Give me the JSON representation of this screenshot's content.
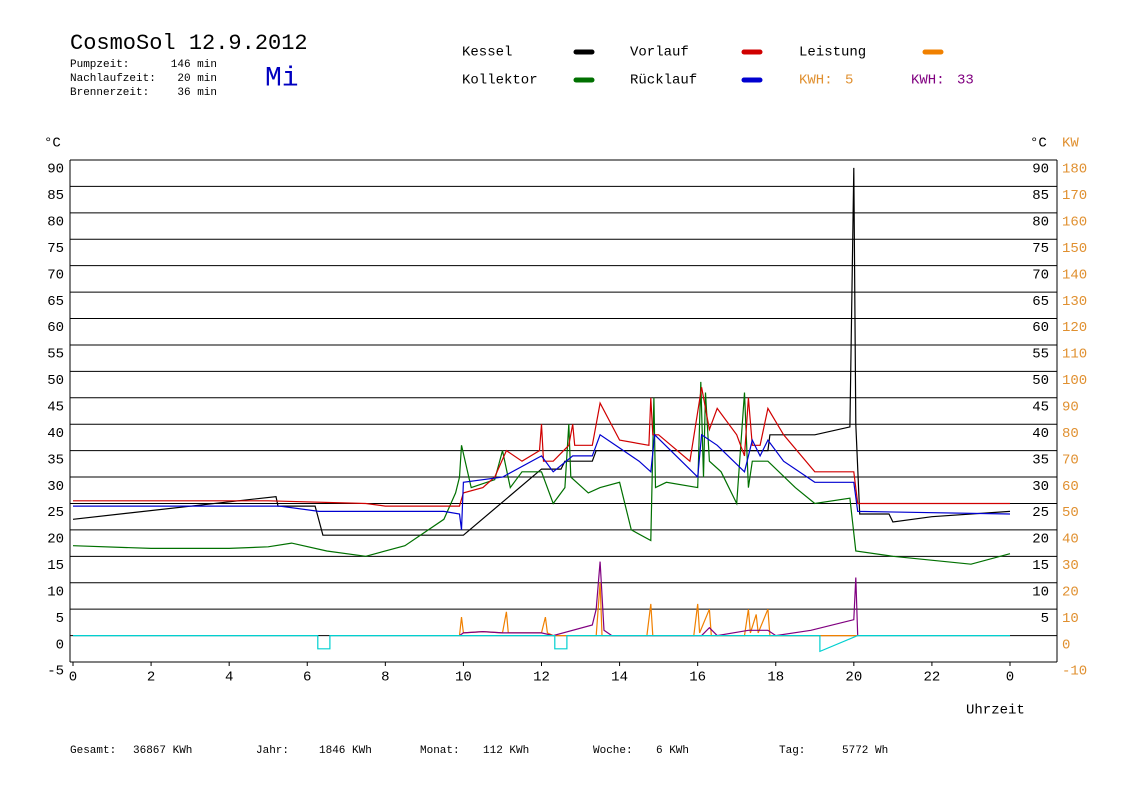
{
  "header": {
    "title": "CosmoSol 12.9.2012",
    "weekday": "Mi",
    "stats": [
      {
        "label": "Pumpzeit:",
        "value": "146 min"
      },
      {
        "label": "Nachlaufzeit:",
        "value": "20 min"
      },
      {
        "label": "Brennerzeit:",
        "value": "36 min"
      }
    ]
  },
  "footer": [
    {
      "label": "Gesamt:",
      "value": "36867 KWh"
    },
    {
      "label": "Jahr:",
      "value": "1846 KWh"
    },
    {
      "label": "Monat:",
      "value": "112 KWh"
    },
    {
      "label": "Woche:",
      "value": "6 KWh"
    },
    {
      "label": "Tag:",
      "value": "5772 Wh"
    }
  ],
  "chart_data": {
    "type": "line",
    "y_label": "°C",
    "y2_label": "°C",
    "y2_unit": "KW",
    "x_label": "Uhrzeit",
    "xlim": [
      0,
      24
    ],
    "xticks": [
      0,
      2,
      4,
      6,
      8,
      10,
      12,
      14,
      16,
      18,
      20,
      22,
      {
        "value": 24,
        "label": "0"
      }
    ],
    "ylim": [
      -5,
      90
    ],
    "yticks": [
      -5,
      0,
      5,
      10,
      15,
      20,
      25,
      30,
      35,
      40,
      45,
      50,
      55,
      60,
      65,
      70,
      75,
      80,
      85,
      90
    ],
    "y_right_ticks": [
      5,
      10,
      15,
      20,
      25,
      30,
      35,
      40,
      45,
      50,
      55,
      60,
      65,
      70,
      75,
      80,
      85,
      90
    ],
    "y2lim": [
      -10,
      180
    ],
    "y2ticks": [
      -10,
      0,
      10,
      20,
      30,
      40,
      50,
      60,
      70,
      80,
      90,
      100,
      110,
      120,
      130,
      140,
      150,
      160,
      170,
      180
    ],
    "grid": true,
    "series": [
      {
        "name": "Kessel",
        "color": "#000000",
        "x": [
          0,
          5.2,
          5.25,
          6.2,
          6.4,
          10,
          12,
          12.5,
          12.6,
          13.3,
          13.4,
          17.8,
          17.85,
          19,
          19.9,
          20,
          20.05,
          20.15,
          20.9,
          21,
          22,
          24
        ],
        "values": [
          22,
          26.3,
          24.5,
          24.5,
          19,
          19,
          31.5,
          31.5,
          33,
          33,
          35,
          35,
          38,
          38,
          39.5,
          88.5,
          40,
          23,
          23,
          21.5,
          22.5,
          23.5
        ]
      },
      {
        "name": "Kollektor",
        "color": "#007000",
        "x": [
          0,
          2,
          4,
          5,
          5.6,
          6.5,
          7.5,
          8.5,
          9.5,
          9.8,
          9.9,
          9.95,
          10.2,
          10.8,
          11,
          11.2,
          11.5,
          12,
          12.3,
          12.6,
          12.7,
          12.75,
          13.2,
          13.5,
          14,
          14.3,
          14.8,
          14.88,
          14.92,
          15.2,
          16,
          16.08,
          16.15,
          16.2,
          16.3,
          16.6,
          17,
          17.2,
          17.3,
          17.4,
          17.8,
          18.5,
          19,
          19.9,
          20.05,
          21,
          23,
          24
        ],
        "values": [
          17,
          16.5,
          16.5,
          16.8,
          17.5,
          16,
          15,
          17,
          22,
          27,
          30,
          36,
          28,
          29.5,
          35,
          28,
          31,
          31,
          25,
          28,
          40,
          30,
          27,
          28,
          29,
          20,
          18,
          45,
          28,
          29,
          28,
          48,
          30,
          46,
          33,
          31,
          25,
          46,
          28,
          33,
          33,
          28,
          25,
          26,
          16,
          15,
          13.5,
          15.5
        ]
      },
      {
        "name": "Vorlauf",
        "color": "#d00000",
        "x": [
          0,
          5,
          7.5,
          8,
          9.9,
          10,
          10.5,
          10.8,
          11.1,
          11.5,
          11.95,
          12,
          12.05,
          12.3,
          12.7,
          12.8,
          12.85,
          13.3,
          13.5,
          14,
          14.75,
          14.8,
          14.85,
          15,
          15.8,
          16.1,
          16.3,
          16.5,
          17,
          17.2,
          17.3,
          17.4,
          17.6,
          17.8,
          18.2,
          19,
          20,
          20.1,
          24
        ],
        "values": [
          25.5,
          25.5,
          25,
          24.5,
          24.5,
          27,
          28,
          30,
          35,
          33,
          35,
          40,
          33,
          33,
          36,
          40,
          36,
          36,
          44,
          37,
          36,
          45,
          38,
          38,
          33,
          47,
          39,
          43,
          38,
          34,
          45,
          36,
          36,
          43,
          38,
          31,
          31,
          25,
          25
        ]
      },
      {
        "name": "Rücklauf",
        "color": "#0000d0",
        "x": [
          0,
          5.3,
          6.3,
          9.5,
          9.9,
          9.95,
          10,
          11,
          12,
          12.3,
          12.8,
          13.3,
          13.5,
          14.5,
          14.8,
          14.9,
          16,
          16.1,
          16.5,
          17.2,
          17.4,
          17.6,
          17.8,
          18.2,
          19,
          20,
          20.1,
          24
        ],
        "values": [
          24.5,
          24.5,
          23.5,
          23.5,
          23,
          20,
          29,
          30,
          34,
          31,
          34,
          34,
          38,
          33,
          31,
          38,
          30,
          38,
          36,
          31,
          37,
          34,
          37,
          33,
          29,
          29,
          23.5,
          23
        ]
      },
      {
        "name": "Leistung",
        "color": "#f08000",
        "axis": "y2",
        "kwh_label": "KWH:",
        "kwh": 5,
        "x": [
          9.9,
          9.95,
          10,
          10.5,
          11,
          11.1,
          11.15,
          12,
          12.1,
          12.15,
          12.3,
          13.4,
          13.5,
          13.55,
          14.7,
          14.8,
          14.85,
          15.9,
          16,
          16.05,
          16.3,
          16.35,
          17.2,
          17.3,
          17.35,
          17.5,
          17.55,
          17.8,
          17.85,
          18,
          20.1
        ],
        "values": [
          0,
          7,
          1,
          1.5,
          1,
          9,
          1,
          1,
          7,
          1,
          0,
          0,
          20,
          0,
          0,
          12,
          0,
          0,
          12,
          1,
          10,
          0,
          0,
          10,
          1,
          8,
          1,
          10,
          0,
          0,
          0
        ]
      },
      {
        "name": null,
        "color": "#800080",
        "axis": "y2",
        "kwh_label": "KWH:",
        "kwh": 33,
        "x": [
          9.9,
          10,
          10.5,
          11,
          12,
          12.3,
          13.3,
          13.4,
          13.5,
          13.6,
          13.8,
          16.1,
          16.3,
          16.5,
          17.3,
          17.8,
          18,
          18.9,
          20,
          20.05,
          20.1
        ],
        "values": [
          0,
          1,
          1.5,
          1,
          1,
          0,
          4,
          10,
          28,
          2,
          0,
          0,
          3,
          0,
          2,
          2,
          0,
          2,
          6,
          22,
          0
        ]
      },
      {
        "name": null,
        "color": "#00d0d0",
        "x": [
          0,
          6.27,
          6.27,
          6.58,
          6.58,
          12.34,
          12.34,
          12.65,
          12.65,
          19.13,
          19.13,
          20.1,
          24
        ],
        "values": [
          0,
          0,
          -2.5,
          -2.5,
          0,
          0,
          -2.5,
          -2.5,
          0,
          0,
          -3,
          0,
          0
        ]
      }
    ]
  }
}
